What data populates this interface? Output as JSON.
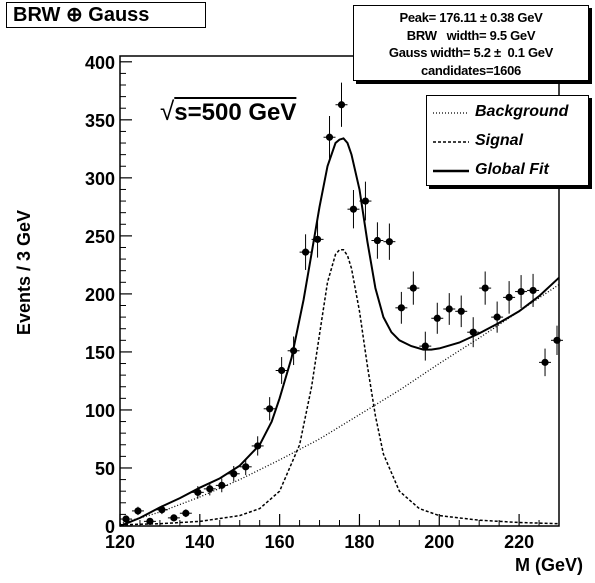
{
  "chart_data": {
    "type": "scatter",
    "title": "BRW ⊕ Gauss",
    "xlabel": "M (GeV)",
    "ylabel": "Events / 3 GeV",
    "xlim": [
      120,
      230
    ],
    "ylim": [
      0,
      405
    ],
    "x_ticks": [
      120,
      140,
      160,
      180,
      200,
      220
    ],
    "y_ticks": [
      0,
      50,
      100,
      150,
      200,
      250,
      300,
      350,
      400
    ],
    "annotation": "s=500 GeV",
    "annotation_prefix": "√",
    "stats": [
      "Peak= 176.11 ± 0.38 GeV",
      "BRW   width= 9.5 GeV",
      "Gauss width= 5.2 ±  0.1 GeV",
      "candidates=1606"
    ],
    "legend": [
      {
        "label": "Background",
        "style": "dotted"
      },
      {
        "label": "Signal",
        "style": "dashed"
      },
      {
        "label": "Global Fit",
        "style": "solid"
      }
    ],
    "legend_position": "top-right",
    "data_points": {
      "x": [
        121.5,
        124.5,
        127.5,
        130.5,
        133.5,
        136.5,
        139.5,
        142.5,
        145.5,
        148.5,
        151.5,
        154.5,
        157.5,
        160.5,
        163.5,
        166.5,
        169.5,
        172.5,
        175.5,
        178.5,
        181.5,
        184.5,
        187.5,
        190.5,
        193.5,
        196.5,
        199.5,
        202.5,
        205.5,
        208.5,
        211.5,
        214.5,
        217.5,
        220.5,
        223.5,
        226.5,
        229.5
      ],
      "y": [
        6,
        13,
        4,
        14,
        7,
        11,
        29,
        32,
        35,
        45,
        51,
        69,
        101,
        134,
        151,
        236,
        247,
        335,
        363,
        273,
        280,
        246,
        245,
        188,
        205,
        155,
        179,
        187,
        185,
        167,
        205,
        180,
        197,
        202,
        203,
        141,
        160
      ]
    },
    "background_curve": {
      "x": [
        120,
        130,
        140,
        150,
        160,
        170,
        180,
        190,
        200,
        210,
        220,
        230
      ],
      "y": [
        2,
        12,
        25,
        40,
        57,
        75,
        96,
        117,
        140,
        162,
        185,
        208
      ]
    },
    "signal_curve": {
      "x": [
        120,
        130,
        140,
        150,
        155,
        160,
        165,
        168,
        170,
        172,
        174,
        175,
        176,
        177,
        178,
        180,
        182,
        184,
        186,
        190,
        195,
        200,
        210,
        220,
        230
      ],
      "y": [
        1,
        2,
        4,
        9,
        15,
        30,
        70,
        120,
        165,
        210,
        234,
        238,
        238,
        233,
        222,
        185,
        138,
        95,
        62,
        30,
        15,
        9,
        5,
        3,
        2
      ]
    },
    "fit_curve": {
      "x": [
        120,
        125,
        130,
        135,
        140,
        145,
        150,
        155,
        158,
        160,
        163,
        166,
        168,
        170,
        172,
        174,
        175,
        176,
        177,
        178,
        180,
        182,
        184,
        186,
        188,
        190,
        193,
        196,
        198,
        200,
        205,
        210,
        215,
        220,
        225,
        230
      ],
      "y": [
        0,
        7,
        16,
        24,
        33,
        41,
        52,
        70,
        90,
        110,
        145,
        195,
        235,
        275,
        310,
        330,
        333,
        334,
        330,
        320,
        290,
        245,
        205,
        180,
        167,
        160,
        155,
        152,
        152,
        153,
        158,
        166,
        175,
        185,
        198,
        214
      ]
    },
    "grid": false
  }
}
